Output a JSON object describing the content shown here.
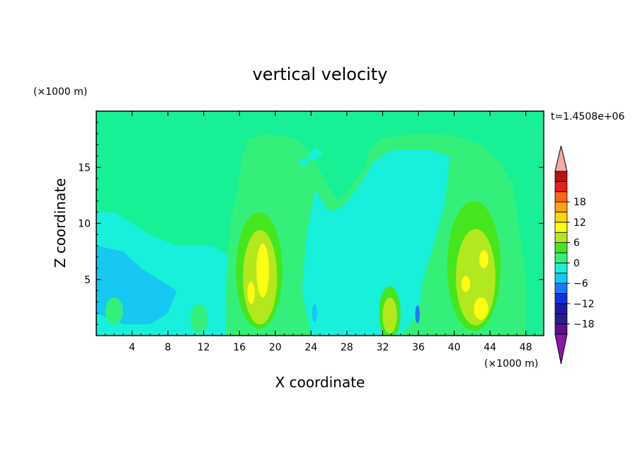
{
  "chart_data": {
    "type": "heatmap",
    "title": "vertical velocity",
    "xlabel": "X coordinate",
    "ylabel": "Z coordinate",
    "x_unit": "(×1000 m)",
    "y_unit": "(×1000 m)",
    "time_label": "t=1.4508e+06",
    "xlim": [
      0,
      50
    ],
    "ylim": [
      0,
      20
    ],
    "x_ticks": [
      4,
      8,
      12,
      16,
      20,
      24,
      28,
      32,
      36,
      40,
      44,
      48
    ],
    "y_ticks": [
      5,
      10,
      15
    ],
    "colorbar": {
      "levels": [
        -21,
        -18,
        -15,
        -12,
        -9,
        -6,
        -3,
        0,
        3,
        6,
        9,
        12,
        15,
        18,
        21
      ],
      "tick_labels": [
        -18,
        -12,
        -6,
        0,
        6,
        12,
        18
      ],
      "colors": [
        "#5a0f8c",
        "#2a1a8c",
        "#1a1aa8",
        "#1430dc",
        "#1c78ff",
        "#16c8f2",
        "#18f0dc",
        "#34f07a",
        "#46e61e",
        "#b4e81e",
        "#ffff14",
        "#ffd214",
        "#ffa014",
        "#ff6414",
        "#e61e1e",
        "#b41414"
      ],
      "under_color": "#8c14a8",
      "over_color": "#f5aaaa"
    },
    "background_color": "#18f096",
    "features": [
      {
        "shape": "poly",
        "value": -1,
        "points": [
          [
            0,
            11
          ],
          [
            2,
            11
          ],
          [
            4,
            10
          ],
          [
            6,
            9
          ],
          [
            9,
            8
          ],
          [
            13,
            8
          ],
          [
            15,
            7
          ],
          [
            16,
            5
          ],
          [
            16,
            0
          ],
          [
            0,
            0
          ]
        ]
      },
      {
        "shape": "poly",
        "value": -4,
        "points": [
          [
            0,
            8
          ],
          [
            3,
            7.5
          ],
          [
            5,
            6
          ],
          [
            7,
            5
          ],
          [
            9,
            4
          ],
          [
            8,
            2
          ],
          [
            6,
            1
          ],
          [
            3,
            1
          ],
          [
            0,
            2
          ]
        ]
      },
      {
        "shape": "poly",
        "value": 1,
        "points": [
          [
            14.5,
            0
          ],
          [
            14.5,
            5
          ],
          [
            15,
            10
          ],
          [
            15.8,
            13
          ],
          [
            16.3,
            16
          ],
          [
            17,
            17.5
          ],
          [
            19,
            18
          ],
          [
            22,
            17.6
          ],
          [
            23.8,
            16.5
          ],
          [
            24.8,
            15
          ],
          [
            25.8,
            13.5
          ],
          [
            27,
            12
          ],
          [
            28.5,
            13.3
          ],
          [
            30,
            15
          ],
          [
            30.5,
            16.5
          ],
          [
            32,
            17.6
          ],
          [
            36,
            18
          ],
          [
            40,
            17.8
          ],
          [
            43,
            17
          ],
          [
            45,
            15.5
          ],
          [
            46.5,
            13.5
          ],
          [
            47,
            11
          ],
          [
            47.5,
            8
          ],
          [
            48,
            5
          ],
          [
            48,
            0
          ]
        ]
      },
      {
        "shape": "poly",
        "value": -1,
        "points": [
          [
            24.5,
            13
          ],
          [
            26,
            11
          ],
          [
            27.5,
            11.5
          ],
          [
            29.5,
            13.5
          ],
          [
            31,
            15.5
          ],
          [
            33,
            16.5
          ],
          [
            37,
            16.6
          ],
          [
            39.5,
            16
          ],
          [
            39,
            12
          ],
          [
            38,
            9
          ],
          [
            36.5,
            5
          ],
          [
            36,
            2
          ],
          [
            34,
            0
          ],
          [
            24,
            0
          ],
          [
            23,
            4
          ],
          [
            23.5,
            9
          ]
        ]
      },
      {
        "shape": "poly",
        "value": -1,
        "points": [
          [
            23.6,
            16
          ],
          [
            24.2,
            15.6
          ],
          [
            25.4,
            16.2
          ],
          [
            24.4,
            16.7
          ]
        ]
      },
      {
        "shape": "poly",
        "value": -1,
        "points": [
          [
            22.6,
            15.4
          ],
          [
            23.2,
            15
          ],
          [
            23.8,
            15.6
          ],
          [
            23.1,
            15.9
          ]
        ]
      },
      {
        "shape": "poly",
        "value": -3,
        "points": [
          [
            27.5,
            9
          ],
          [
            29,
            7
          ],
          [
            30.5,
            5
          ],
          [
            30,
            3
          ],
          [
            28,
            2
          ],
          [
            26,
            3
          ],
          [
            26,
            6
          ]
        ]
      },
      {
        "shape": "poly",
        "value": -3,
        "points": [
          [
            33,
            8
          ],
          [
            34.5,
            10
          ],
          [
            35.5,
            9
          ],
          [
            35.5,
            6
          ],
          [
            34.5,
            5
          ],
          [
            33.5,
            6
          ]
        ]
      },
      {
        "shape": "ellipse",
        "value": 4,
        "cx": 18.2,
        "cy": 5.8,
        "rx": 2.6,
        "ry": 5.2
      },
      {
        "shape": "ellipse",
        "value": 7,
        "cx": 18.3,
        "cy": 5.2,
        "rx": 1.9,
        "ry": 4.2
      },
      {
        "shape": "ellipse",
        "value": 10,
        "cx": 18.6,
        "cy": 5.8,
        "rx": 0.7,
        "ry": 2.4
      },
      {
        "shape": "ellipse",
        "value": 10,
        "cx": 17.3,
        "cy": 3.8,
        "rx": 0.4,
        "ry": 1.0
      },
      {
        "shape": "ellipse",
        "value": 4,
        "cx": 42.2,
        "cy": 6.2,
        "rx": 3.0,
        "ry": 5.8
      },
      {
        "shape": "ellipse",
        "value": 7,
        "cx": 42.4,
        "cy": 5.2,
        "rx": 2.2,
        "ry": 4.3
      },
      {
        "shape": "ellipse",
        "value": 10,
        "cx": 43.0,
        "cy": 2.4,
        "rx": 0.8,
        "ry": 1.0
      },
      {
        "shape": "ellipse",
        "value": 10,
        "cx": 43.3,
        "cy": 6.8,
        "rx": 0.5,
        "ry": 0.8
      },
      {
        "shape": "ellipse",
        "value": 10,
        "cx": 41.3,
        "cy": 4.6,
        "rx": 0.5,
        "ry": 0.7
      },
      {
        "shape": "ellipse",
        "value": 4,
        "cx": 32.8,
        "cy": 2.0,
        "rx": 1.2,
        "ry": 2.4
      },
      {
        "shape": "ellipse",
        "value": 7,
        "cx": 32.8,
        "cy": 1.8,
        "rx": 0.8,
        "ry": 1.6
      },
      {
        "shape": "ellipse",
        "value": -7,
        "cx": 35.9,
        "cy": 1.9,
        "rx": 0.25,
        "ry": 0.8
      },
      {
        "shape": "ellipse",
        "value": -4,
        "cx": 24.4,
        "cy": 2.0,
        "rx": 0.3,
        "ry": 0.8
      },
      {
        "shape": "ellipse",
        "value": 1,
        "cx": 11.5,
        "cy": 1.5,
        "rx": 1.0,
        "ry": 1.3
      },
      {
        "shape": "ellipse",
        "value": 1,
        "cx": 2.0,
        "cy": 2.2,
        "rx": 1.0,
        "ry": 1.2
      }
    ]
  }
}
